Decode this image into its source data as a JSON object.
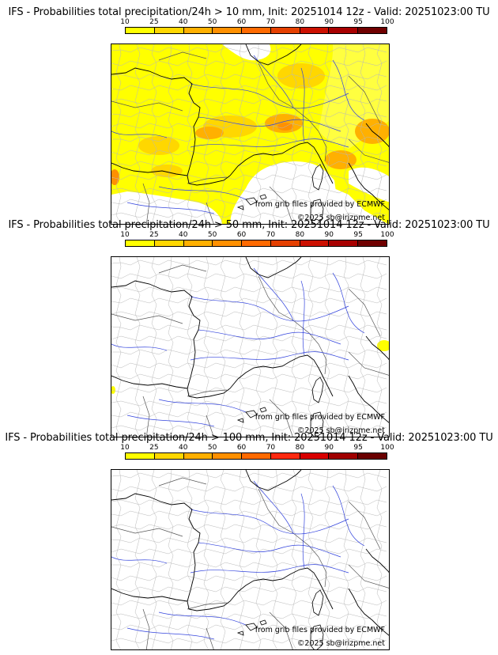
{
  "colorbar": {
    "ticks": [
      "10",
      "25",
      "40",
      "50",
      "60",
      "70",
      "80",
      "90",
      "95",
      "100"
    ],
    "colors_standard": [
      "#ffff00",
      "#ffd700",
      "#ffb000",
      "#ff9000",
      "#ff6a00",
      "#e54000",
      "#cc1000",
      "#a80000",
      "#700000"
    ],
    "colors_extended": [
      "#ffff00",
      "#ffd700",
      "#ffb000",
      "#ff9000",
      "#ff6a00",
      "#ff2a10",
      "#d80000",
      "#a00000",
      "#6a0000"
    ]
  },
  "panels": [
    {
      "title": "IFS - Probabilities total precipitation/24h > 10 mm, Init: 20251014 12z - Valid: 20251023:00 TU",
      "threshold_mm": 10,
      "palette": "standard",
      "precip_coverage": "widespread"
    },
    {
      "title": "IFS - Probabilities total precipitation/24h > 50 mm, Init: 20251014 12z - Valid: 20251023:00 TU",
      "threshold_mm": 50,
      "palette": "standard",
      "precip_coverage": "minimal"
    },
    {
      "title": "IFS - Probabilities total precipitation/24h > 100 mm, Init: 20251014 12z - Valid: 20251023:00 TU",
      "threshold_mm": 100,
      "palette": "extended",
      "precip_coverage": "none"
    }
  ],
  "credits": {
    "source": "from grib files provided by ECMWF",
    "copyright": "©2025 sb@irizpme.net"
  }
}
